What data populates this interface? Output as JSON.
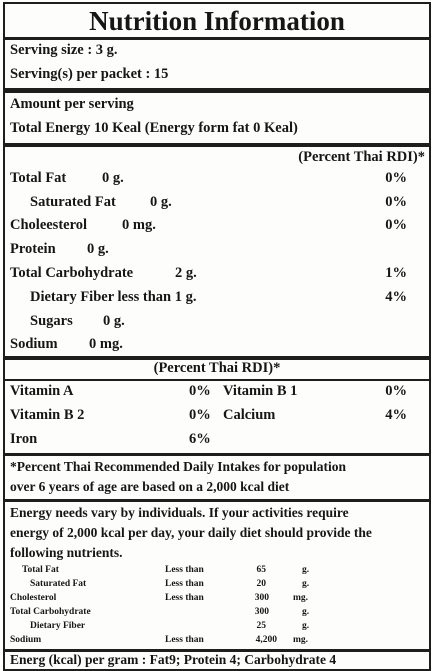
{
  "title": "Nutrition Information",
  "serving_size": "Serving size :  3 g.",
  "servings_per_packet": "Serving(s) per packet : 15",
  "amount_per_serving": "Amount per serving",
  "total_energy": "Total Energy 10 Keal (Energy form fat 0 Keal)",
  "rdi_header": "(Percent Thai RDI)*",
  "nutrients": [
    {
      "name": "Total Fat",
      "amount": "0 g.",
      "percent": "0%"
    },
    {
      "name": "Saturated Fat",
      "amount": "0 g.",
      "percent": "0%"
    },
    {
      "name": "Choleesterol",
      "amount": "0 mg.",
      "percent": "0%"
    },
    {
      "name": "Protein",
      "amount": "0 g.",
      "percent": ""
    },
    {
      "name": "Total Carbohydrate",
      "amount": "2 g.",
      "percent": "1%"
    },
    {
      "name": "Dietary Fiber less than 1 g.",
      "amount": "",
      "percent": "4%"
    },
    {
      "name": "Sugars",
      "amount": "0 g.",
      "percent": ""
    },
    {
      "name": "Sodium",
      "amount": "0 mg.",
      "percent": ""
    }
  ],
  "vitamin_header": "(Percent Thai RDI)*",
  "vitamins": [
    {
      "left_name": "Vitamin A",
      "left_pct": "0%",
      "right_name": "Vitamin B 1",
      "right_pct": "0%"
    },
    {
      "left_name": "Vitamin  B 2",
      "left_pct": "0%",
      "right_name": "Calcium",
      "right_pct": "4%"
    },
    {
      "left_name": "Iron",
      "left_pct": "6%",
      "right_name": "",
      "right_pct": ""
    }
  ],
  "footnote_1": "*Percent Thai Recommended Daily Intakes for population",
  "footnote_2": "over 6 years of age are based on a 2,000 kcal diet",
  "needs_1": "Energy needs vary by individuals. If your activities require",
  "needs_2": "energy of 2,000 kcal per day, your daily diet should provide the",
  "needs_3": "following nutrients.",
  "daily_table": [
    {
      "name": "Total Fat",
      "qual": "Less than",
      "value": "65",
      "unit": "g."
    },
    {
      "name": "Saturated Fat",
      "qual": "Less than",
      "value": "20",
      "unit": "g."
    },
    {
      "name": "Cholesterol",
      "qual": "Less than",
      "value": "300",
      "unit": "mg."
    },
    {
      "name": "Total Carbohydrate",
      "qual": "",
      "value": "300",
      "unit": "g."
    },
    {
      "name": "Dietary Fiber",
      "qual": "",
      "value": "25",
      "unit": "g."
    },
    {
      "name": "Sodium",
      "qual": "Less than",
      "value": "4,200",
      "unit": "mg."
    }
  ],
  "energy_per_gram": "Energ (kcal) per gram : Fat9; Protein 4; Carbohydrate 4"
}
